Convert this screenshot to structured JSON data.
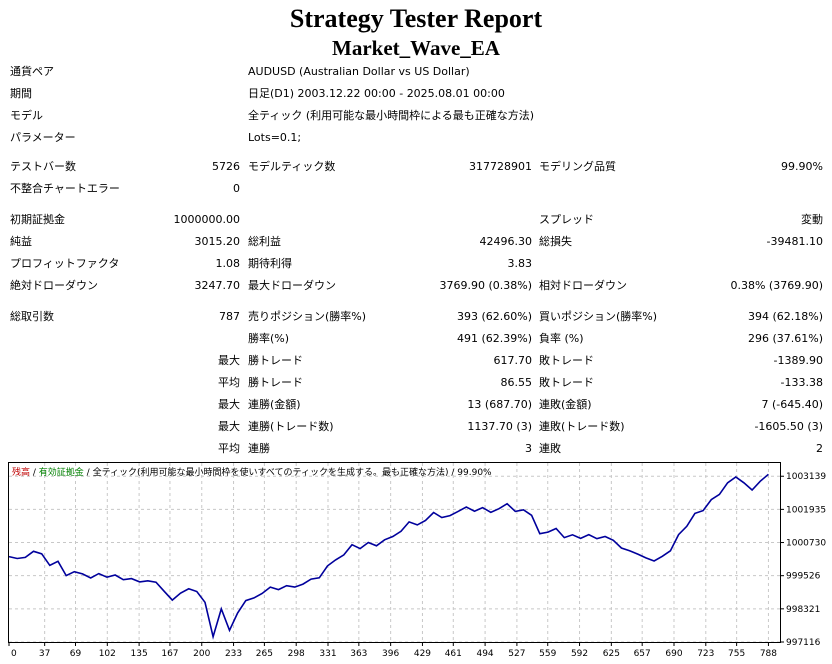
{
  "report": {
    "title": "Strategy Tester Report",
    "ea_name": "Market_Wave_EA"
  },
  "info": {
    "symbol_label": "通貨ペア",
    "symbol_value": "AUDUSD (Australian Dollar vs US Dollar)",
    "period_label": "期間",
    "period_value": "日足(D1) 2003.12.22 00:00 - 2025.08.01 00:00",
    "model_label": "モデル",
    "model_value": "全ティック (利用可能な最小時間枠による最も正確な方法)",
    "params_label": "パラメーター",
    "params_value": "Lots=0.1;"
  },
  "stats": {
    "bars_label": "テストバー数",
    "bars_value": "5726",
    "ticks_label": "モデルティック数",
    "ticks_value": "317728901",
    "quality_label": "モデリング品質",
    "quality_value": "99.90%",
    "mismatch_label": "不整合チャートエラー",
    "mismatch_value": "0",
    "deposit_label": "初期証拠金",
    "deposit_value": "1000000.00",
    "spread_label": "スプレッド",
    "spread_value": "変動",
    "net_label": "純益",
    "net_value": "3015.20",
    "gross_profit_label": "総利益",
    "gross_profit_value": "42496.30",
    "gross_loss_label": "総損失",
    "gross_loss_value": "-39481.10",
    "pf_label": "プロフィットファクタ",
    "pf_value": "1.08",
    "expected_label": "期待利得",
    "expected_value": "3.83",
    "abs_dd_label": "絶対ドローダウン",
    "abs_dd_value": "3247.70",
    "max_dd_label": "最大ドローダウン",
    "max_dd_value": "3769.90 (0.38%)",
    "rel_dd_label": "相対ドローダウン",
    "rel_dd_value": "0.38% (3769.90)",
    "total_trades_label": "総取引数",
    "total_trades_value": "787",
    "short_label": "売りポジション(勝率%)",
    "short_value": "393 (62.60%)",
    "long_label": "買いポジション(勝率%)",
    "long_value": "394 (62.18%)",
    "win_pct_label": "勝率(%)",
    "win_pct_value": "491 (62.39%)",
    "loss_pct_label": "負率 (%)",
    "loss_pct_value": "296 (37.61%)",
    "max_label": "最大",
    "avg_label": "平均",
    "largest_win_label": "勝トレード",
    "largest_win_value": "617.70",
    "largest_loss_label": "敗トレード",
    "largest_loss_value": "-1389.90",
    "avg_win_label": "勝トレード",
    "avg_win_value": "86.55",
    "avg_loss_label": "敗トレード",
    "avg_loss_value": "-133.38",
    "cons_wins_money_label": "連勝(金額)",
    "cons_wins_money_value": "13 (687.70)",
    "cons_losses_money_label": "連敗(金額)",
    "cons_losses_money_value": "7 (-645.40)",
    "cons_profit_label": "連勝(トレード数)",
    "cons_profit_value": "1137.70 (3)",
    "cons_loss_label": "連敗(トレード数)",
    "cons_loss_value": "-1605.50 (3)",
    "avg_cons_wins_label": "連勝",
    "avg_cons_wins_value": "3",
    "avg_cons_losses_label": "連敗",
    "avg_cons_losses_value": "2"
  },
  "chart_header": {
    "balance": "残高",
    "sep": " / ",
    "equity": "有効証拠金",
    "model": "全ティック(利用可能な最小時間枠を使いすべてのティックを生成する。最も正確な方法)",
    "quality": "99.90%"
  },
  "colors": {
    "balance_line": "#00009c",
    "balance_label": "#c00000",
    "equity_label": "#008000",
    "grid": "#c8c8c8",
    "text": "#000000"
  },
  "chart_data": {
    "type": "line",
    "series": [
      {
        "name": "残高",
        "values": [
          1000220,
          1000150,
          1000190,
          1000410,
          1000320,
          999900,
          1000050,
          999530,
          999670,
          999590,
          999440,
          999600,
          999470,
          999550,
          999380,
          999420,
          999300,
          999340,
          999290,
          998960,
          998640,
          998890,
          999050,
          998950,
          998560,
          997310,
          998320,
          997540,
          998170,
          998620,
          998720,
          998880,
          999110,
          999020,
          999160,
          999110,
          999220,
          999400,
          999450,
          999880,
          1000100,
          1000280,
          1000650,
          1000510,
          1000730,
          1000610,
          1000830,
          1000950,
          1001140,
          1001480,
          1001370,
          1001530,
          1001820,
          1001640,
          1001710,
          1001860,
          1002020,
          1001870,
          1002000,
          1001830,
          1001960,
          1002140,
          1001860,
          1001920,
          1001720,
          1001050,
          1001110,
          1001240,
          1000910,
          1001010,
          1000880,
          1001020,
          1000870,
          1000950,
          1000810,
          1000530,
          1000430,
          1000310,
          1000170,
          1000060,
          1000230,
          1000430,
          1001020,
          1001320,
          1001790,
          1001890,
          1002290,
          1002480,
          1002900,
          1003110,
          1002900,
          1002640,
          1002960,
          1003210
        ]
      }
    ],
    "x_ticks": [
      "0",
      "37",
      "69",
      "102",
      "135",
      "167",
      "200",
      "233",
      "265",
      "298",
      "331",
      "363",
      "396",
      "429",
      "461",
      "494",
      "527",
      "559",
      "592",
      "625",
      "657",
      "690",
      "723",
      "755",
      "788"
    ],
    "y_ticks": [
      "1003139",
      "1001935",
      "1000730",
      "999526",
      "998321",
      "997116"
    ],
    "x_range": [
      0,
      800
    ],
    "y_range": [
      997116,
      1003620
    ],
    "grid": true
  }
}
